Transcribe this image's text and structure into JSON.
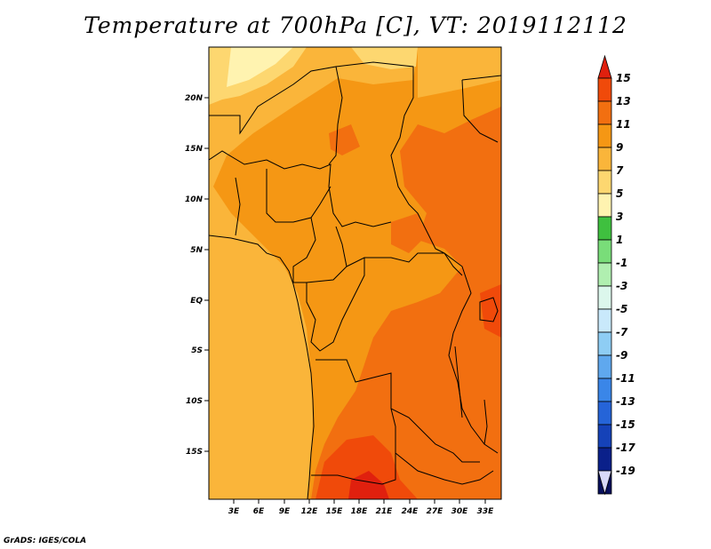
{
  "title": "Temperature at 700hPa [C], VT: 2019112112",
  "credit": "GrADS: IGES/COLA",
  "map": {
    "variable": "Temperature at 700hPa",
    "units": "C",
    "lat_labels": [
      "20N",
      "15N",
      "10N",
      "5N",
      "EQ",
      "5S",
      "10S",
      "15S"
    ],
    "lon_labels": [
      "3E",
      "6E",
      "9E",
      "12E",
      "15E",
      "18E",
      "21E",
      "24E",
      "27E",
      "30E",
      "33E"
    ]
  },
  "colorbar": {
    "labels": [
      "15",
      "13",
      "11",
      "9",
      "7",
      "5",
      "3",
      "1",
      "-1",
      "-3",
      "-5",
      "-7",
      "-9",
      "-11",
      "-13",
      "-15",
      "-17",
      "-19"
    ],
    "colors": [
      "#e0200e",
      "#f04a0a",
      "#f26f10",
      "#f59714",
      "#fab53a",
      "#fdd770",
      "#fff3b0",
      "#3fc03f",
      "#79dd79",
      "#b0efb0",
      "#dcf7ec",
      "#c9e9fb",
      "#8ecdf4",
      "#5fa8ee",
      "#3a86e8",
      "#2564d8",
      "#1542b8",
      "#0a208a",
      "#080f5c",
      "#d8d8f8"
    ]
  }
}
